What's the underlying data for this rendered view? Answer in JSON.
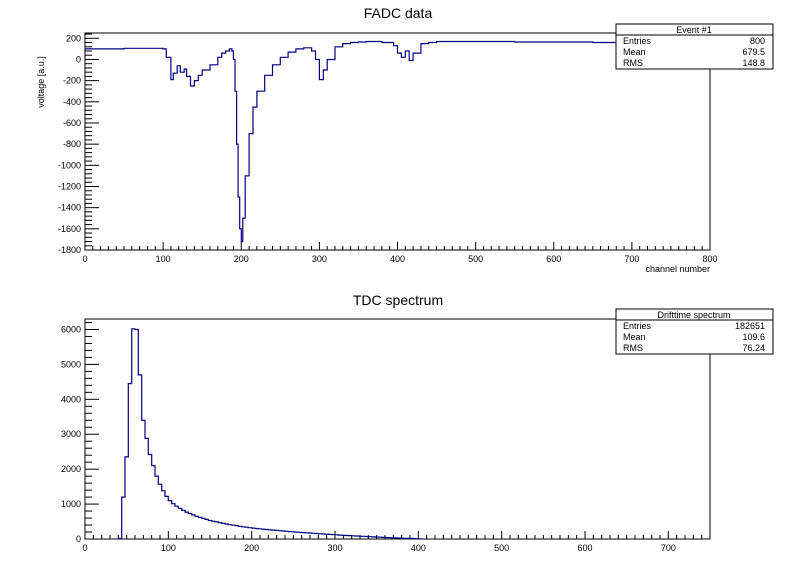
{
  "chart_data": [
    {
      "type": "line",
      "title": "FADC data",
      "xlabel": "channel number",
      "ylabel": "voltage [a.u.]",
      "xlim": [
        0,
        800
      ],
      "ylim": [
        -1800,
        250
      ],
      "xticks": [
        0,
        100,
        200,
        300,
        400,
        500,
        600,
        700,
        800
      ],
      "yticks": [
        200,
        0,
        -200,
        -400,
        -600,
        -800,
        -1000,
        -1200,
        -1400,
        -1600,
        -1800
      ],
      "xtick_labels": [
        "0",
        "100",
        "200",
        "300",
        "400",
        "500",
        "600",
        "700",
        "800"
      ],
      "ytick_labels": [
        "200",
        "0",
        "-200",
        "-400",
        "-600",
        "-800",
        "-1000",
        "-1200",
        "-1400",
        "-1600",
        "-1800"
      ],
      "series": [
        {
          "name": "Event #1",
          "x": [
            0,
            50,
            100,
            104,
            110,
            113,
            118,
            122,
            127,
            130,
            135,
            140,
            145,
            150,
            160,
            170,
            175,
            180,
            185,
            188,
            190,
            192,
            194,
            196,
            198,
            200,
            202,
            205,
            210,
            215,
            220,
            230,
            240,
            250,
            260,
            270,
            280,
            290,
            295,
            300,
            305,
            310,
            320,
            330,
            340,
            350,
            360,
            380,
            395,
            400,
            405,
            410,
            415,
            420,
            430,
            440,
            450,
            500,
            550,
            600,
            650,
            700,
            750,
            800
          ],
          "y": [
            100,
            105,
            100,
            20,
            -190,
            -130,
            -60,
            -120,
            -90,
            -160,
            -250,
            -200,
            -150,
            -100,
            -50,
            20,
            60,
            80,
            100,
            80,
            0,
            -300,
            -800,
            -1300,
            -1600,
            -1720,
            -1500,
            -1100,
            -700,
            -450,
            -300,
            -150,
            -50,
            20,
            70,
            100,
            110,
            80,
            0,
            -190,
            -100,
            0,
            120,
            150,
            160,
            165,
            170,
            160,
            130,
            60,
            20,
            80,
            -10,
            60,
            150,
            160,
            170,
            170,
            165,
            165,
            160,
            160,
            160,
            160
          ]
        }
      ],
      "stats": {
        "title": "Event #1",
        "rows": [
          {
            "label": "Entries",
            "value": "800"
          },
          {
            "label": "Mean",
            "value": "679.5"
          },
          {
            "label": "RMS",
            "value": "148.8"
          }
        ]
      }
    },
    {
      "type": "bar",
      "title": "TDC spectrum",
      "xlabel": "",
      "ylabel": "",
      "xlim": [
        0,
        750
      ],
      "ylim": [
        0,
        6300
      ],
      "xticks": [
        0,
        100,
        200,
        300,
        400,
        500,
        600,
        700
      ],
      "yticks": [
        0,
        1000,
        2000,
        3000,
        4000,
        5000,
        6000
      ],
      "xtick_labels": [
        "0",
        "100",
        "200",
        "300",
        "400",
        "500",
        "600",
        "700"
      ],
      "ytick_labels": [
        "0",
        "1000",
        "2000",
        "3000",
        "4000",
        "5000",
        "6000"
      ],
      "bin_width": 4,
      "bin_start": 40,
      "values": [
        10,
        1200,
        2350,
        4450,
        6020,
        6000,
        4700,
        3400,
        2880,
        2420,
        2100,
        1800,
        1570,
        1380,
        1220,
        1100,
        1010,
        940,
        880,
        820,
        770,
        730,
        690,
        650,
        620,
        590,
        560,
        530,
        510,
        490,
        470,
        450,
        430,
        410,
        395,
        380,
        365,
        350,
        338,
        325,
        313,
        302,
        292,
        282,
        272,
        263,
        254,
        245,
        237,
        229,
        221,
        213,
        206,
        199,
        192,
        185,
        178,
        171,
        164,
        157,
        150,
        143,
        137,
        131,
        125,
        119,
        113,
        107,
        101,
        96,
        91,
        86,
        81,
        76,
        71,
        66,
        61,
        56,
        51,
        46,
        42,
        38,
        34,
        30,
        26,
        22,
        19,
        16,
        13,
        10,
        7
      ],
      "stats": {
        "title": "Drifttime spectrum",
        "rows": [
          {
            "label": "Entries",
            "value": "182651"
          },
          {
            "label": "Mean",
            "value": "109.6"
          },
          {
            "label": "RMS",
            "value": "76.24"
          }
        ]
      }
    }
  ],
  "colors": {
    "trace": "#000080",
    "axis": "#000000",
    "background": "#ffffff"
  }
}
